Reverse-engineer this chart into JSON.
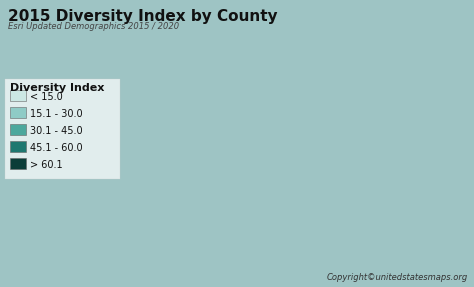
{
  "title": "2015 Diversity Index by County",
  "subtitle": "Esri Updated Demographics 2015 / 2020",
  "copyright": "Copyright©unitedstatesmaps.org",
  "legend_title": "Diversity Index",
  "legend_labels": [
    "< 15.0",
    "15.1 - 30.0",
    "30.1 - 45.0",
    "45.1 - 60.0",
    "> 60.1"
  ],
  "legend_colors": [
    "#cce8e4",
    "#8fcbc6",
    "#4da89d",
    "#1e7870",
    "#0b3d38"
  ],
  "figure_bg": "#9ec4c4",
  "inner_bg": "#f0f0ee",
  "ocean_bg": "#c8dada",
  "title_fontsize": 11,
  "subtitle_fontsize": 6,
  "legend_fontsize": 7,
  "copyright_fontsize": 6,
  "figsize": [
    4.74,
    2.87
  ],
  "dpi": 100
}
